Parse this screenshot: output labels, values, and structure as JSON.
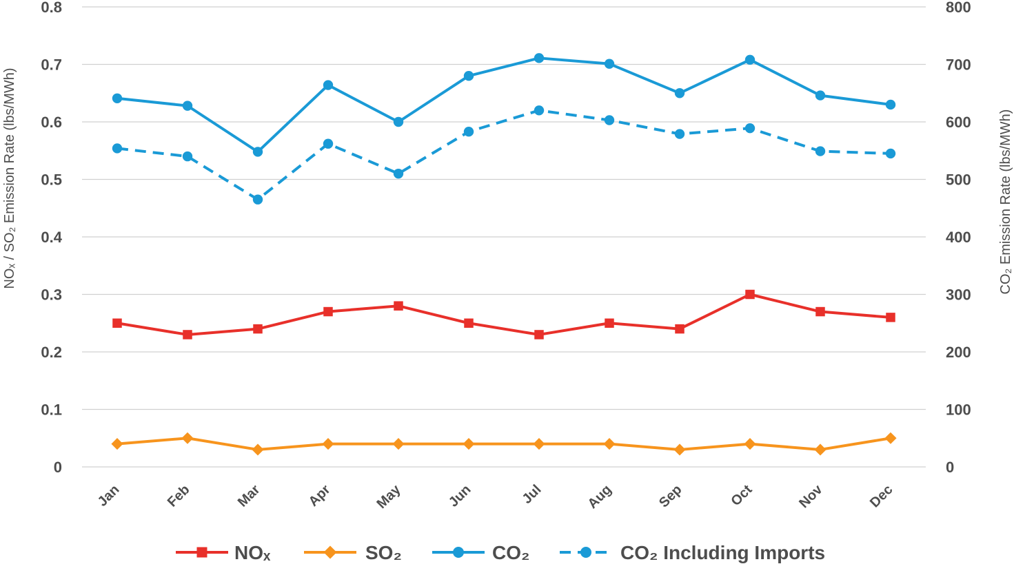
{
  "chart_data": {
    "type": "line",
    "categories": [
      "Jan",
      "Feb",
      "Mar",
      "Apr",
      "May",
      "Jun",
      "Jul",
      "Aug",
      "Sep",
      "Oct",
      "Nov",
      "Dec"
    ],
    "left_axis": {
      "label": "NOₓ / SO₂ Emission Rate (lbs/MWh)",
      "ylim": [
        0,
        0.8
      ],
      "ticks": [
        "0",
        "0.1",
        "0.2",
        "0.3",
        "0.4",
        "0.5",
        "0.6",
        "0.7",
        "0.8"
      ],
      "tick_values": [
        0,
        0.1,
        0.2,
        0.3,
        0.4,
        0.5,
        0.6,
        0.7,
        0.8
      ]
    },
    "right_axis": {
      "label": "CO₂ Emission Rate (lbs/MWh)",
      "ylim": [
        0,
        800
      ],
      "ticks": [
        "0",
        "100",
        "200",
        "300",
        "400",
        "500",
        "600",
        "700",
        "800"
      ],
      "tick_values": [
        0,
        100,
        200,
        300,
        400,
        500,
        600,
        700,
        800
      ]
    },
    "grid": true,
    "legend_position": "bottom",
    "series": [
      {
        "name": "NOₓ",
        "axis": "left",
        "color": "#e8302a",
        "marker": "square",
        "dash": false,
        "values": [
          0.25,
          0.23,
          0.24,
          0.27,
          0.28,
          0.25,
          0.23,
          0.25,
          0.24,
          0.3,
          0.27,
          0.26
        ]
      },
      {
        "name": "SO₂",
        "axis": "left",
        "color": "#f7941d",
        "marker": "diamond",
        "dash": false,
        "values": [
          0.04,
          0.05,
          0.03,
          0.04,
          0.04,
          0.04,
          0.04,
          0.04,
          0.03,
          0.04,
          0.03,
          0.05
        ]
      },
      {
        "name": "CO₂",
        "axis": "right",
        "color": "#1a9ad6",
        "marker": "circle",
        "dash": false,
        "values": [
          641,
          628,
          548,
          664,
          600,
          680,
          711,
          701,
          650,
          708,
          646,
          630
        ]
      },
      {
        "name": "CO₂ Including Imports",
        "axis": "right",
        "color": "#1a9ad6",
        "marker": "circle",
        "dash": true,
        "values": [
          554,
          540,
          465,
          562,
          510,
          583,
          620,
          603,
          579,
          589,
          549,
          545
        ]
      }
    ]
  }
}
